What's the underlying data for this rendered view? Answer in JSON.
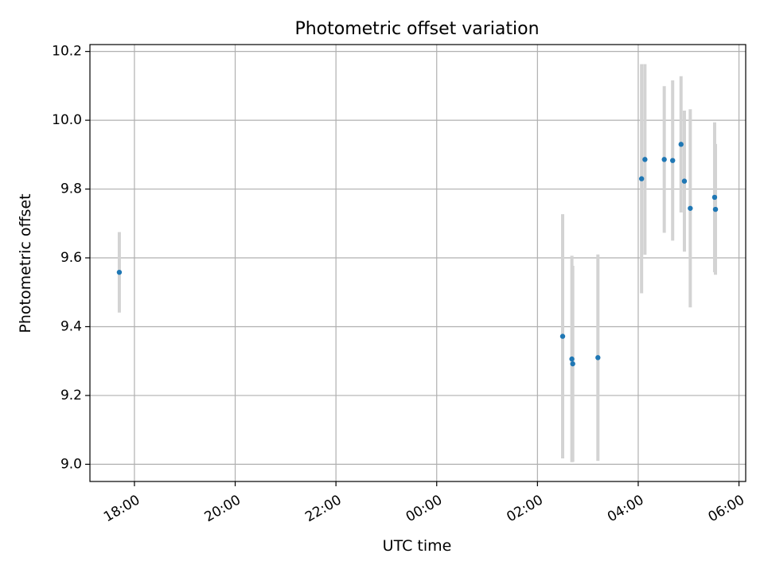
{
  "chart_data": {
    "type": "scatter",
    "title": "Photometric offset variation",
    "xlabel": "UTC time",
    "ylabel": "Photometric offset",
    "x_ticks": [
      "18:00",
      "20:00",
      "22:00",
      "00:00",
      "02:00",
      "04:00",
      "06:00"
    ],
    "y_ticks": [
      "9.0",
      "9.2",
      "9.4",
      "9.6",
      "9.8",
      "10.0",
      "10.2"
    ],
    "y_tick_values": [
      9.0,
      9.2,
      9.4,
      9.6,
      9.8,
      10.0,
      10.2
    ],
    "xlim": [
      "17:07",
      "06:08"
    ],
    "ylim": [
      8.95,
      10.22
    ],
    "grid": true,
    "marker_color": "#1f77b4",
    "errorbar_color": "#d3d3d3",
    "points": [
      {
        "x": "17:42",
        "y": 9.558,
        "err": 0.117
      },
      {
        "x": "02:30",
        "y": 9.372,
        "err": 0.355
      },
      {
        "x": "02:41",
        "y": 9.306,
        "err": 0.3
      },
      {
        "x": "02:42",
        "y": 9.292,
        "err": 0.285
      },
      {
        "x": "03:12",
        "y": 9.31,
        "err": 0.3
      },
      {
        "x": "04:04",
        "y": 9.83,
        "err": 0.333
      },
      {
        "x": "04:08",
        "y": 9.886,
        "err": 0.277
      },
      {
        "x": "04:31",
        "y": 9.886,
        "err": 0.213
      },
      {
        "x": "04:41",
        "y": 9.883,
        "err": 0.233
      },
      {
        "x": "04:51",
        "y": 9.93,
        "err": 0.198
      },
      {
        "x": "04:55",
        "y": 9.823,
        "err": 0.205
      },
      {
        "x": "05:02",
        "y": 9.744,
        "err": 0.288
      },
      {
        "x": "05:31",
        "y": 9.776,
        "err": 0.218
      },
      {
        "x": "05:32",
        "y": 9.741,
        "err": 0.19
      }
    ]
  }
}
